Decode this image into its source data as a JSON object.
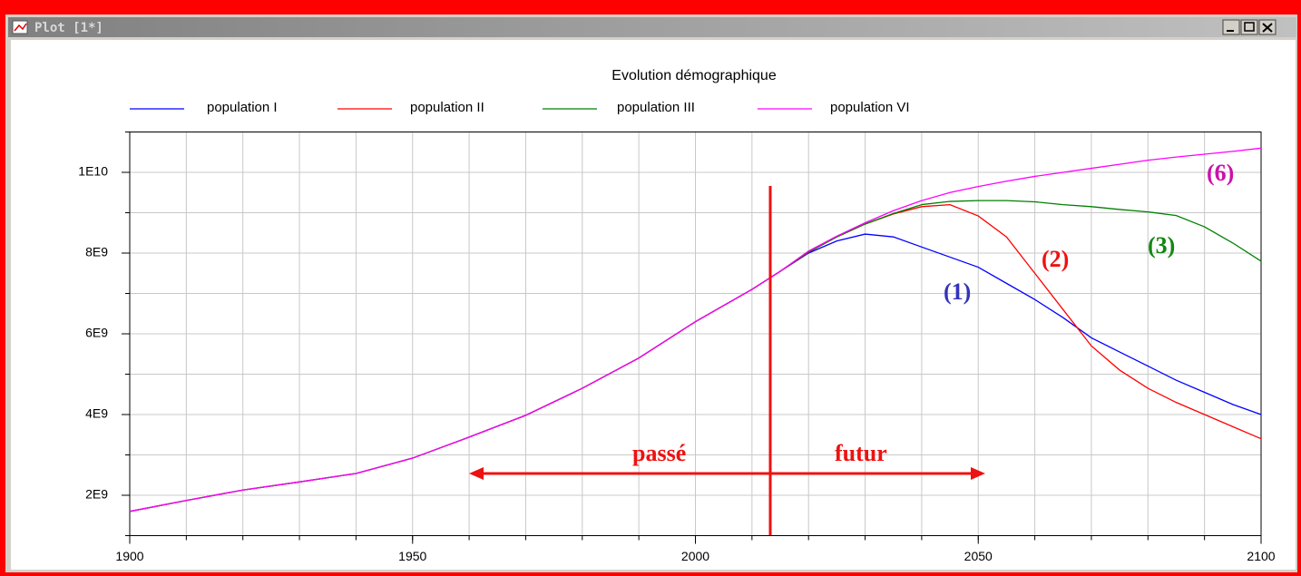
{
  "window": {
    "title": "Plot [1*]"
  },
  "chart_data": {
    "type": "line",
    "title": "Evolution démographique",
    "x": [
      1900,
      1910,
      1920,
      1930,
      1940,
      1950,
      1960,
      1970,
      1980,
      1990,
      2000,
      2005,
      2010,
      2015,
      2020,
      2025,
      2030,
      2035,
      2040,
      2045,
      2050,
      2055,
      2060,
      2065,
      2070,
      2075,
      2080,
      2085,
      2090,
      2095,
      2100
    ],
    "series": [
      {
        "name": "population I",
        "color": "#0000ff",
        "values": [
          1600000000.0,
          1870000000.0,
          2130000000.0,
          2330000000.0,
          2540000000.0,
          2920000000.0,
          3440000000.0,
          3980000000.0,
          4650000000.0,
          5400000000.0,
          6300000000.0,
          6700000000.0,
          7100000000.0,
          7550000000.0,
          8000000000.0,
          8300000000.0,
          8470000000.0,
          8400000000.0,
          8150000000.0,
          7900000000.0,
          7650000000.0,
          7250000000.0,
          6850000000.0,
          6400000000.0,
          5900000000.0,
          5550000000.0,
          5200000000.0,
          4850000000.0,
          4550000000.0,
          4250000000.0,
          4000000000.0
        ]
      },
      {
        "name": "population II",
        "color": "#ff0000",
        "values": [
          1600000000.0,
          1870000000.0,
          2130000000.0,
          2330000000.0,
          2540000000.0,
          2920000000.0,
          3440000000.0,
          3980000000.0,
          4650000000.0,
          5400000000.0,
          6300000000.0,
          6700000000.0,
          7100000000.0,
          7550000000.0,
          8020000000.0,
          8400000000.0,
          8720000000.0,
          8970000000.0,
          9150000000.0,
          9200000000.0,
          8920000000.0,
          8400000000.0,
          7500000000.0,
          6600000000.0,
          5700000000.0,
          5100000000.0,
          4650000000.0,
          4300000000.0,
          4000000000.0,
          3700000000.0,
          3400000000.0
        ]
      },
      {
        "name": "population III",
        "color": "#008000",
        "values": [
          1600000000.0,
          1870000000.0,
          2130000000.0,
          2330000000.0,
          2540000000.0,
          2920000000.0,
          3440000000.0,
          3980000000.0,
          4650000000.0,
          5400000000.0,
          6300000000.0,
          6700000000.0,
          7100000000.0,
          7550000000.0,
          8030000000.0,
          8400000000.0,
          8720000000.0,
          8980000000.0,
          9200000000.0,
          9280000000.0,
          9300000000.0,
          9300000000.0,
          9270000000.0,
          9200000000.0,
          9150000000.0,
          9080000000.0,
          9020000000.0,
          8930000000.0,
          8650000000.0,
          8250000000.0,
          7800000000.0
        ]
      },
      {
        "name": "population VI",
        "color": "#ff00ff",
        "values": [
          1600000000.0,
          1870000000.0,
          2130000000.0,
          2330000000.0,
          2540000000.0,
          2920000000.0,
          3440000000.0,
          3980000000.0,
          4650000000.0,
          5400000000.0,
          6300000000.0,
          6700000000.0,
          7100000000.0,
          7550000000.0,
          8050000000.0,
          8420000000.0,
          8750000000.0,
          9050000000.0,
          9300000000.0,
          9500000000.0,
          9650000000.0,
          9780000000.0,
          9900000000.0,
          10000000000.0,
          10100000000.0,
          10200000000.0,
          10300000000.0,
          10380000000.0,
          10450000000.0,
          10520000000.0,
          10600000000.0
        ]
      }
    ],
    "xlim": [
      1900,
      2100
    ],
    "xticks": [
      1900,
      1950,
      2000,
      2050,
      2100
    ],
    "xgrid": [
      1900,
      1910,
      1920,
      1930,
      1940,
      1950,
      1960,
      1970,
      1980,
      1990,
      2000,
      2010,
      2020,
      2030,
      2040,
      2050,
      2060,
      2070,
      2080,
      2090,
      2100
    ],
    "ylim": [
      1000000000.0,
      11000000000.0
    ],
    "yticks": [
      {
        "value": 2000000000.0,
        "label": "2E9"
      },
      {
        "value": 4000000000.0,
        "label": "4E9"
      },
      {
        "value": 6000000000.0,
        "label": "6E9"
      },
      {
        "value": 8000000000.0,
        "label": "8E9"
      },
      {
        "value": 10000000000.0,
        "label": "1E10"
      }
    ],
    "ygrid": [
      1000000000.0,
      2000000000.0,
      3000000000.0,
      4000000000.0,
      5000000000.0,
      6000000000.0,
      7000000000.0,
      8000000000.0,
      9000000000.0,
      10000000000.0,
      11000000000.0
    ],
    "grid": true,
    "legend": "top",
    "annotations": [
      {
        "text": "(1)",
        "color": "#3333bb"
      },
      {
        "text": "(2)",
        "color": "#ee1111"
      },
      {
        "text": "(3)",
        "color": "#118811"
      },
      {
        "text": "(6)",
        "color": "#cc11aa"
      },
      {
        "text": "passé",
        "color": "#ee1111"
      },
      {
        "text": "futur",
        "color": "#ee1111"
      }
    ]
  }
}
